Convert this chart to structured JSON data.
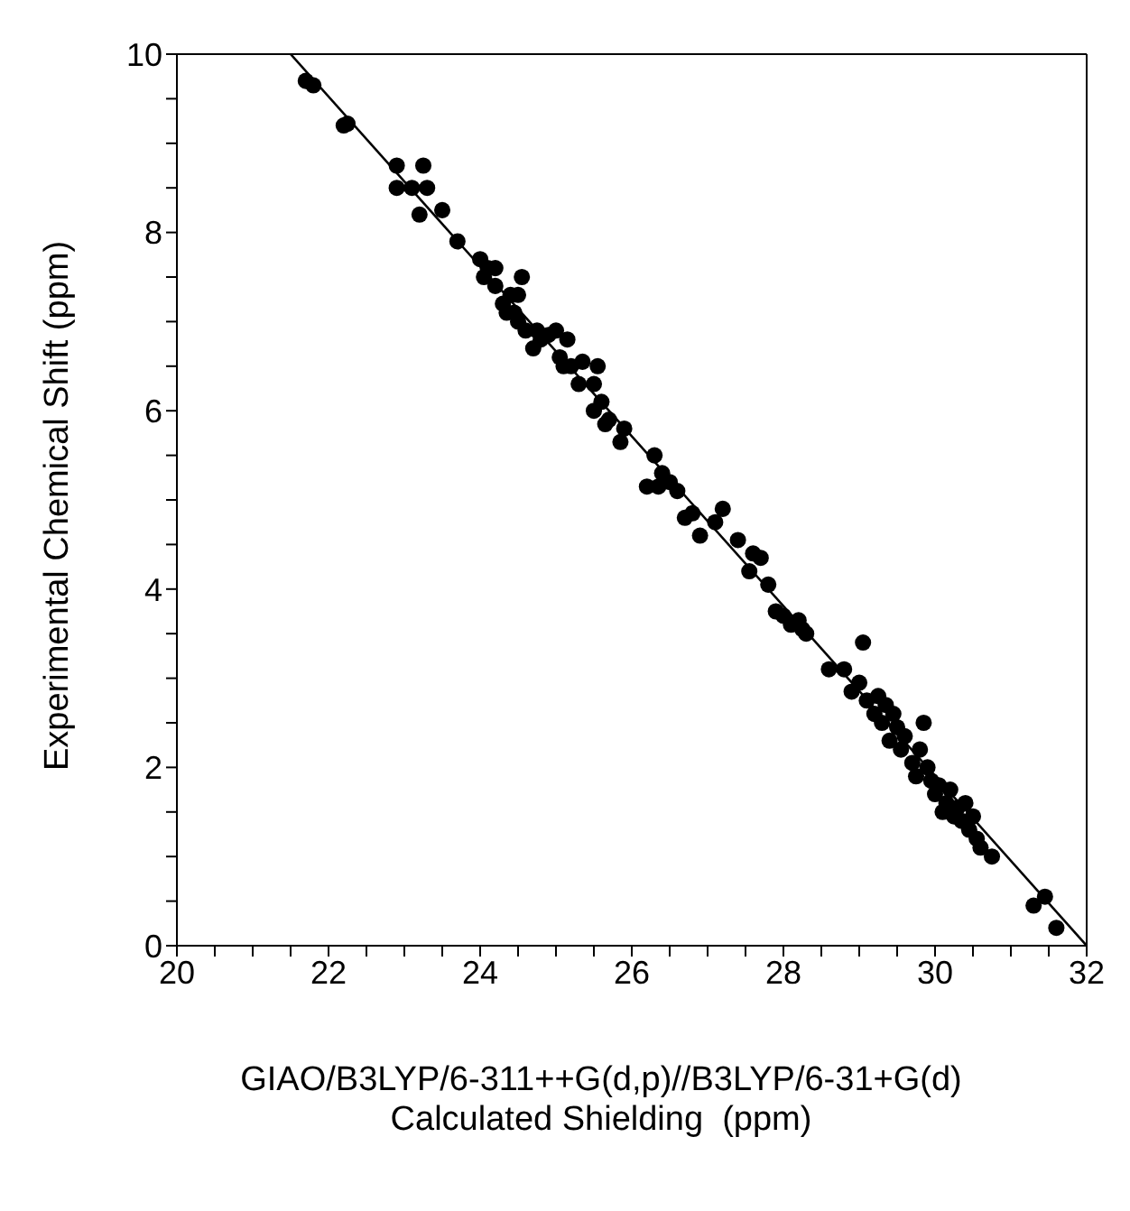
{
  "chart_data": {
    "type": "scatter",
    "xlabel": "GIAO/B3LYP/6-311++G(d,p)//B3LYP/6-31+G(d)\nCalculated Shielding  (ppm)",
    "ylabel": "Experimental Chemical Shift  (ppm)",
    "xlim": [
      20,
      32
    ],
    "ylim": [
      0,
      10
    ],
    "xticks": [
      20,
      {
        "value": 20.5,
        "label": null
      },
      {
        "value": 21,
        "label": null
      },
      {
        "value": 21.5,
        "label": null
      },
      22,
      {
        "value": 22.5,
        "label": null
      },
      {
        "value": 23,
        "label": null
      },
      {
        "value": 23.5,
        "label": null
      },
      24,
      {
        "value": 24.5,
        "label": null
      },
      {
        "value": 25,
        "label": null
      },
      {
        "value": 25.5,
        "label": null
      },
      26,
      {
        "value": 26.5,
        "label": null
      },
      {
        "value": 27,
        "label": null
      },
      {
        "value": 27.5,
        "label": null
      },
      28,
      {
        "value": 28.5,
        "label": null
      },
      {
        "value": 29,
        "label": null
      },
      {
        "value": 29.5,
        "label": null
      },
      30,
      {
        "value": 30.5,
        "label": null
      },
      {
        "value": 31,
        "label": null
      },
      {
        "value": 31.5,
        "label": null
      },
      32
    ],
    "yticks": [
      0,
      {
        "value": 0.5,
        "label": null
      },
      {
        "value": 1,
        "label": null
      },
      {
        "value": 1.5,
        "label": null
      },
      2,
      {
        "value": 2.5,
        "label": null
      },
      {
        "value": 3,
        "label": null
      },
      {
        "value": 3.5,
        "label": null
      },
      4,
      {
        "value": 4.5,
        "label": null
      },
      {
        "value": 5,
        "label": null
      },
      {
        "value": 5.5,
        "label": null
      },
      6,
      {
        "value": 6.5,
        "label": null
      },
      {
        "value": 7,
        "label": null
      },
      {
        "value": 7.5,
        "label": null
      },
      8,
      {
        "value": 8.5,
        "label": null
      },
      {
        "value": 9,
        "label": null
      },
      {
        "value": 9.5,
        "label": null
      },
      10
    ],
    "marker": "circle",
    "series": [
      {
        "color": "#000000",
        "x": [
          21.7,
          21.8,
          22.2,
          22.25,
          22.9,
          22.9,
          23.1,
          23.2,
          23.25,
          23.3,
          23.5,
          23.7,
          24.0,
          24.05,
          24.1,
          24.2,
          24.2,
          24.3,
          24.35,
          24.4,
          24.45,
          24.5,
          24.55,
          24.5,
          24.6,
          24.7,
          24.75,
          24.8,
          24.9,
          25.0,
          25.05,
          25.1,
          25.15,
          25.2,
          25.3,
          25.35,
          25.5,
          25.5,
          25.55,
          25.6,
          25.65,
          25.7,
          25.85,
          25.9,
          26.2,
          26.3,
          26.35,
          26.4,
          26.5,
          26.6,
          26.7,
          26.8,
          26.9,
          27.1,
          27.2,
          27.4,
          27.55,
          27.6,
          27.7,
          27.8,
          27.9,
          28.0,
          28.1,
          28.2,
          28.25,
          28.3,
          28.6,
          28.8,
          28.9,
          29.0,
          29.05,
          29.1,
          29.2,
          29.25,
          29.3,
          29.35,
          29.4,
          29.45,
          29.5,
          29.55,
          29.6,
          29.7,
          29.75,
          29.8,
          29.85,
          29.9,
          29.95,
          30.0,
          30.05,
          30.1,
          30.15,
          30.2,
          30.25,
          30.3,
          30.35,
          30.4,
          30.45,
          30.5,
          30.55,
          30.6,
          30.75,
          31.3,
          31.45,
          31.6
        ],
        "values": [
          9.7,
          9.65,
          9.2,
          9.22,
          8.75,
          8.5,
          8.5,
          8.2,
          8.75,
          8.5,
          8.25,
          7.9,
          7.7,
          7.5,
          7.6,
          7.6,
          7.4,
          7.2,
          7.1,
          7.3,
          7.1,
          7.0,
          7.5,
          7.3,
          6.9,
          6.7,
          6.9,
          6.8,
          6.85,
          6.9,
          6.6,
          6.5,
          6.8,
          6.5,
          6.3,
          6.55,
          6.3,
          6.0,
          6.5,
          6.1,
          5.85,
          5.9,
          5.65,
          5.8,
          5.15,
          5.5,
          5.15,
          5.3,
          5.2,
          5.1,
          4.8,
          4.85,
          4.6,
          4.75,
          4.9,
          4.55,
          4.2,
          4.4,
          4.35,
          4.05,
          3.75,
          3.7,
          3.6,
          3.65,
          3.55,
          3.5,
          3.1,
          3.1,
          2.85,
          2.95,
          3.4,
          2.75,
          2.6,
          2.8,
          2.5,
          2.7,
          2.3,
          2.6,
          2.45,
          2.2,
          2.35,
          2.05,
          1.9,
          2.2,
          2.5,
          2.0,
          1.85,
          1.7,
          1.8,
          1.5,
          1.6,
          1.75,
          1.45,
          1.55,
          1.4,
          1.6,
          1.3,
          1.45,
          1.2,
          1.1,
          1.0,
          0.45,
          0.55,
          0.2
        ]
      },
      {
        "type": "line",
        "color": "#000000",
        "marker": "none",
        "x": [
          21.5,
          32
        ],
        "values": [
          10,
          0
        ]
      }
    ]
  }
}
